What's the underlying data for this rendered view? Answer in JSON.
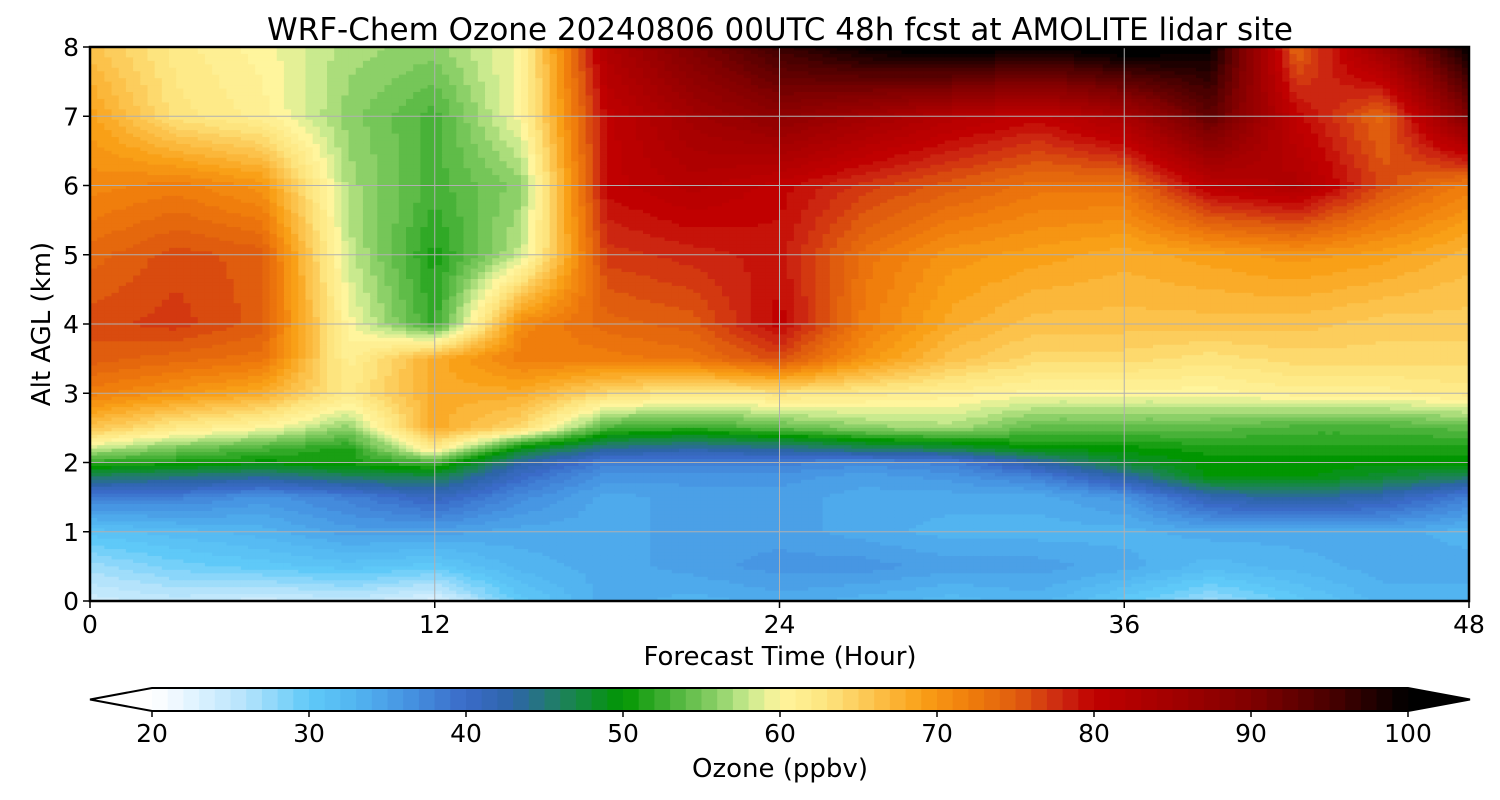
{
  "chart_data": {
    "type": "heatmap",
    "title": "WRF-Chem Ozone  20240806 00UTC 48h fcst at AMOLITE lidar site",
    "xlabel": "Forecast Time (Hour)",
    "ylabel": "Alt AGL (km)",
    "xlim": [
      0,
      48
    ],
    "ylim": [
      0,
      8
    ],
    "xticks": [
      "0",
      "12",
      "24",
      "36",
      "48"
    ],
    "yticks": [
      "0",
      "1",
      "2",
      "3",
      "4",
      "5",
      "6",
      "7",
      "8"
    ],
    "grid": true,
    "x": [
      0,
      3,
      6,
      9,
      12,
      15,
      18,
      21,
      24,
      27,
      30,
      33,
      36,
      39,
      42,
      45,
      48
    ],
    "y": [
      0,
      0.5,
      1,
      1.5,
      1.8,
      2,
      2.2,
      2.5,
      3,
      3.5,
      4,
      5,
      6,
      7,
      8
    ],
    "z": [
      [
        24,
        25,
        24,
        25,
        23,
        30,
        34,
        33,
        34,
        33,
        32,
        33,
        30,
        27,
        30,
        33,
        33
      ],
      [
        27,
        29,
        30,
        31,
        30,
        33,
        34,
        35,
        36,
        36,
        35,
        35,
        34,
        32,
        33,
        34,
        34
      ],
      [
        31,
        32,
        33,
        35,
        35,
        34,
        34,
        35,
        35,
        34,
        33,
        33,
        33,
        34,
        34,
        34,
        33
      ],
      [
        38,
        38,
        36,
        38,
        41,
        37,
        34,
        35,
        35,
        34,
        34,
        34,
        36,
        42,
        44,
        42,
        38
      ],
      [
        46,
        45,
        44,
        46,
        47,
        40,
        36,
        36,
        36,
        35,
        36,
        38,
        43,
        50,
        50,
        48,
        46
      ],
      [
        52,
        51,
        50,
        51,
        53,
        43,
        38,
        38,
        38,
        37,
        38,
        43,
        48,
        50,
        50,
        50,
        50
      ],
      [
        58,
        55,
        53,
        51,
        62,
        49,
        44,
        43,
        44,
        46,
        47,
        50,
        50,
        51,
        51,
        51,
        51
      ],
      [
        66,
        62,
        60,
        56,
        68,
        64,
        53,
        52,
        54,
        56,
        57,
        54,
        54,
        54,
        53,
        53,
        54
      ],
      [
        72,
        70,
        68,
        62,
        68,
        68,
        64,
        62,
        63,
        62,
        61,
        60,
        60,
        60,
        61,
        61,
        62
      ],
      [
        75,
        74,
        73,
        61,
        68,
        72,
        72,
        73,
        76,
        70,
        66,
        64,
        64,
        63,
        64,
        64,
        64
      ],
      [
        76,
        77,
        75,
        60,
        52,
        71,
        74,
        75,
        80,
        72,
        68,
        66,
        66,
        66,
        66,
        65,
        65
      ],
      [
        74,
        76,
        75,
        58,
        51,
        58,
        77,
        78,
        79,
        73,
        70,
        69,
        68,
        69,
        70,
        69,
        67
      ],
      [
        71,
        72,
        70,
        57,
        53,
        56,
        80,
        82,
        80,
        77,
        75,
        73,
        73,
        81,
        83,
        76,
        72
      ],
      [
        69,
        63,
        61,
        56,
        53,
        60,
        80,
        85,
        88,
        85,
        82,
        80,
        84,
        93,
        80,
        74,
        90
      ],
      [
        66,
        62,
        60,
        57,
        56,
        60,
        83,
        90,
        96,
        100,
        102,
        100,
        102,
        100,
        74,
        86,
        100
      ]
    ],
    "colorbar": {
      "label": "Ozone  (ppbv)",
      "min": 20,
      "max": 100,
      "ticks": [
        "20",
        "30",
        "40",
        "50",
        "60",
        "70",
        "80",
        "90",
        "100"
      ],
      "extend": "both",
      "anchors": [
        [
          20,
          "#ffffff"
        ],
        [
          22,
          "#e9f6ff"
        ],
        [
          26,
          "#b4e3fb"
        ],
        [
          30,
          "#5fc9f8"
        ],
        [
          33,
          "#52b4f0"
        ],
        [
          36,
          "#4796e3"
        ],
        [
          40,
          "#3a6bc8"
        ],
        [
          43,
          "#2d65a8"
        ],
        [
          46,
          "#1f8060"
        ],
        [
          48,
          "#0f8d30"
        ],
        [
          50,
          "#019601"
        ],
        [
          53,
          "#48b238"
        ],
        [
          56,
          "#8cd068"
        ],
        [
          58,
          "#c9ea8e"
        ],
        [
          60,
          "#fff59d"
        ],
        [
          63,
          "#fde47e"
        ],
        [
          66,
          "#fcc24b"
        ],
        [
          69,
          "#f9a017"
        ],
        [
          72,
          "#f07e0c"
        ],
        [
          75,
          "#e05d0e"
        ],
        [
          78,
          "#cc2611"
        ],
        [
          80,
          "#c00000"
        ],
        [
          85,
          "#a20000"
        ],
        [
          90,
          "#800000"
        ],
        [
          95,
          "#4a0000"
        ],
        [
          100,
          "#000000"
        ]
      ]
    }
  }
}
